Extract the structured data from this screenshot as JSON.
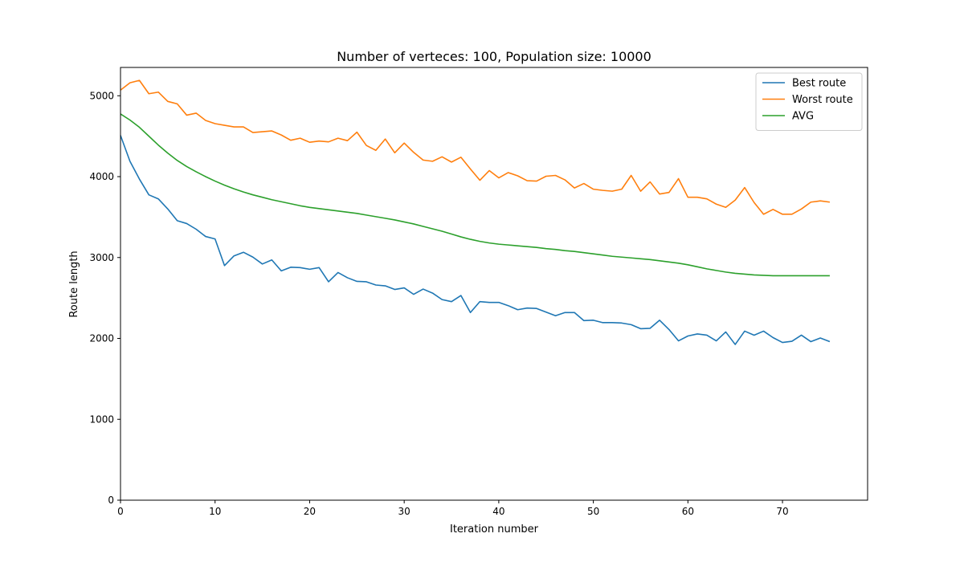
{
  "chart_data": {
    "type": "line",
    "title": "Number of verteces: 100, Population size: 10000",
    "xlabel": "Iteration number",
    "ylabel": "Route length",
    "xlim": [
      0,
      79
    ],
    "ylim": [
      0,
      5350
    ],
    "xticks": [
      0,
      10,
      20,
      30,
      40,
      50,
      60,
      70
    ],
    "yticks": [
      0,
      1000,
      2000,
      3000,
      4000,
      5000
    ],
    "grid": false,
    "legend_position": "top-right",
    "series": [
      {
        "name": "Best route",
        "color": "#1f77b4",
        "values": [
          4510,
          4190,
          3970,
          3775,
          3725,
          3600,
          3455,
          3420,
          3350,
          3260,
          3230,
          2900,
          3020,
          3065,
          3005,
          2920,
          2970,
          2835,
          2880,
          2875,
          2855,
          2875,
          2700,
          2815,
          2750,
          2705,
          2700,
          2660,
          2650,
          2605,
          2625,
          2545,
          2610,
          2560,
          2480,
          2455,
          2530,
          2320,
          2455,
          2445,
          2445,
          2405,
          2355,
          2375,
          2370,
          2325,
          2280,
          2320,
          2320,
          2220,
          2225,
          2195,
          2195,
          2190,
          2170,
          2120,
          2125,
          2225,
          2110,
          1970,
          2030,
          2055,
          2040,
          1970,
          2080,
          1925,
          2090,
          2040,
          2090,
          2010,
          1950,
          1965,
          2040,
          1960,
          2005,
          1960
        ]
      },
      {
        "name": "Worst route",
        "color": "#ff7f0e",
        "values": [
          5070,
          5160,
          5190,
          5025,
          5045,
          4930,
          4900,
          4760,
          4785,
          4695,
          4655,
          4635,
          4615,
          4615,
          4545,
          4555,
          4565,
          4515,
          4450,
          4475,
          4425,
          4440,
          4430,
          4475,
          4445,
          4550,
          4385,
          4325,
          4465,
          4295,
          4415,
          4300,
          4205,
          4190,
          4245,
          4180,
          4240,
          4095,
          3955,
          4075,
          3985,
          4050,
          4010,
          3950,
          3945,
          4005,
          4015,
          3960,
          3860,
          3915,
          3845,
          3830,
          3820,
          3845,
          4015,
          3820,
          3935,
          3785,
          3805,
          3975,
          3745,
          3745,
          3725,
          3660,
          3620,
          3710,
          3865,
          3680,
          3535,
          3595,
          3535,
          3535,
          3600,
          3685,
          3700,
          3685
        ]
      },
      {
        "name": "AVG",
        "color": "#2ca02c",
        "values": [
          4775,
          4700,
          4610,
          4500,
          4390,
          4290,
          4200,
          4125,
          4060,
          4000,
          3945,
          3895,
          3850,
          3810,
          3775,
          3745,
          3715,
          3690,
          3665,
          3640,
          3620,
          3605,
          3590,
          3575,
          3560,
          3545,
          3525,
          3505,
          3485,
          3465,
          3440,
          3415,
          3385,
          3355,
          3325,
          3290,
          3255,
          3225,
          3200,
          3180,
          3165,
          3155,
          3145,
          3135,
          3125,
          3110,
          3100,
          3085,
          3075,
          3060,
          3045,
          3030,
          3015,
          3005,
          2995,
          2985,
          2975,
          2960,
          2945,
          2930,
          2910,
          2885,
          2860,
          2840,
          2820,
          2805,
          2795,
          2785,
          2780,
          2775,
          2775,
          2775,
          2775,
          2775,
          2775,
          2775
        ]
      }
    ]
  }
}
